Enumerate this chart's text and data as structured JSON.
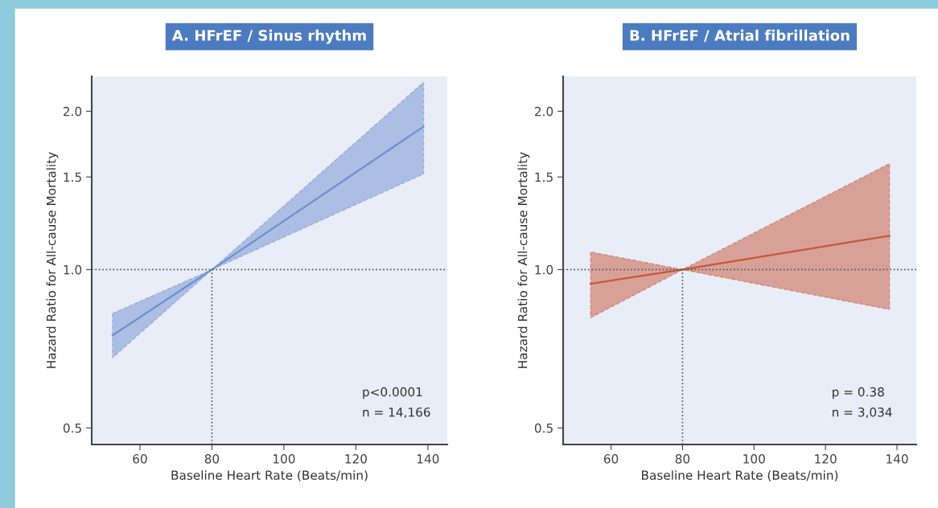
{
  "chart_data": [
    {
      "type": "line",
      "title": "A. HFrEF / Sinus rhythm",
      "xlabel": "Baseline Heart Rate (Beats/min)",
      "ylabel": "Hazard Ratio for All-cause Mortality",
      "log": true,
      "grid": false,
      "marker": "none",
      "line_style": "solid",
      "xlim": [
        46.6,
        145.4
      ],
      "ylim": [
        0.465,
        2.33
      ],
      "xticks": [
        60,
        80,
        100,
        120,
        140
      ],
      "yticks": [
        {
          "value": 0.5,
          "label": "0.5"
        },
        {
          "value": 1,
          "label": "1.0"
        },
        {
          "value": 1.5,
          "label": "1.5"
        },
        {
          "value": 2,
          "label": "2.0"
        }
      ],
      "series": [
        {
          "color": "#6f8fd0",
          "x": [
            52.4,
            80,
            138.8
          ],
          "values": [
            0.75,
            1.0,
            1.87
          ],
          "lower": [
            0.68,
            1.0,
            1.52
          ],
          "upper": [
            0.825,
            1.0,
            2.27
          ]
        }
      ],
      "ref_lines": [
        {
          "axis": "y",
          "value": 1,
          "line_style": "dotted",
          "color": "#555555"
        },
        {
          "axis": "x",
          "value": 80,
          "line_style": "dotted",
          "color": "#555555"
        }
      ],
      "annotations": [
        "p<0.0001",
        "n = 14,166"
      ]
    },
    {
      "type": "line",
      "title": "B. HFrEF / Atrial fibrillation",
      "xlabel": "Baseline Heart Rate (Beats/min)",
      "ylabel": "Hazard Ratio for All-cause Mortality",
      "log": true,
      "grid": false,
      "marker": "none",
      "line_style": "solid",
      "xlim": [
        46.6,
        145.4
      ],
      "ylim": [
        0.465,
        2.33
      ],
      "xticks": [
        60,
        80,
        100,
        120,
        140
      ],
      "yticks": [
        {
          "value": 0.5,
          "label": "0.5"
        },
        {
          "value": 1,
          "label": "1.0"
        },
        {
          "value": 1.5,
          "label": "1.5"
        },
        {
          "value": 2,
          "label": "2.0"
        }
      ],
      "series": [
        {
          "color": "#c8553a",
          "x": [
            54.3,
            80,
            137.9
          ],
          "values": [
            0.94,
            1.0,
            1.16
          ],
          "lower": [
            0.81,
            1.0,
            0.84
          ],
          "upper": [
            1.08,
            1.0,
            1.59
          ]
        }
      ],
      "ref_lines": [
        {
          "axis": "y",
          "value": 1,
          "line_style": "dotted",
          "color": "#555555"
        },
        {
          "axis": "x",
          "value": 80,
          "line_style": "dotted",
          "color": "#555555"
        }
      ],
      "annotations": [
        "p = 0.38",
        "n = 3,034"
      ]
    }
  ]
}
